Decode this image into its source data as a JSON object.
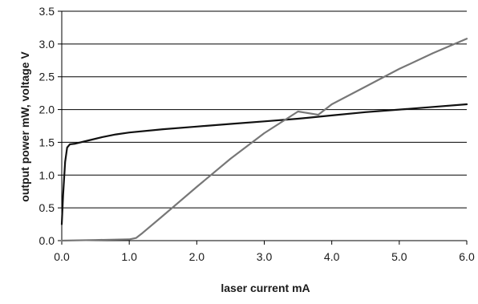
{
  "chart_data": {
    "type": "line",
    "title": "",
    "xlabel": "laser current mA",
    "ylabel": "output power mW, voltage V",
    "xlim": [
      0,
      6
    ],
    "ylim": [
      0,
      3.5
    ],
    "xticks": [
      "0.0",
      "1.0",
      "2.0",
      "3.0",
      "4.0",
      "5.0",
      "6.0"
    ],
    "yticks": [
      "0.0",
      "0.5",
      "1.0",
      "1.5",
      "2.0",
      "2.5",
      "3.0",
      "3.5"
    ],
    "grid": "horizontal",
    "legend": "none",
    "series": [
      {
        "color": "#111111",
        "points": [
          [
            0.0,
            0.25
          ],
          [
            0.02,
            0.7
          ],
          [
            0.05,
            1.2
          ],
          [
            0.08,
            1.42
          ],
          [
            0.12,
            1.47
          ],
          [
            0.2,
            1.48
          ],
          [
            0.4,
            1.53
          ],
          [
            0.6,
            1.58
          ],
          [
            0.8,
            1.62
          ],
          [
            1.0,
            1.65
          ],
          [
            1.5,
            1.7
          ],
          [
            2.0,
            1.74
          ],
          [
            2.5,
            1.78
          ],
          [
            3.0,
            1.82
          ],
          [
            3.5,
            1.86
          ],
          [
            4.0,
            1.91
          ],
          [
            4.5,
            1.96
          ],
          [
            5.0,
            2.0
          ],
          [
            5.5,
            2.04
          ],
          [
            6.0,
            2.08
          ]
        ]
      },
      {
        "color": "#777777",
        "points": [
          [
            0.0,
            0.0
          ],
          [
            0.5,
            0.01
          ],
          [
            1.0,
            0.02
          ],
          [
            1.1,
            0.04
          ],
          [
            1.2,
            0.12
          ],
          [
            1.5,
            0.38
          ],
          [
            2.0,
            0.82
          ],
          [
            2.5,
            1.25
          ],
          [
            3.0,
            1.64
          ],
          [
            3.5,
            1.97
          ],
          [
            3.8,
            1.92
          ],
          [
            4.0,
            2.08
          ],
          [
            4.5,
            2.35
          ],
          [
            5.0,
            2.62
          ],
          [
            5.5,
            2.86
          ],
          [
            6.0,
            3.08
          ]
        ]
      }
    ]
  }
}
